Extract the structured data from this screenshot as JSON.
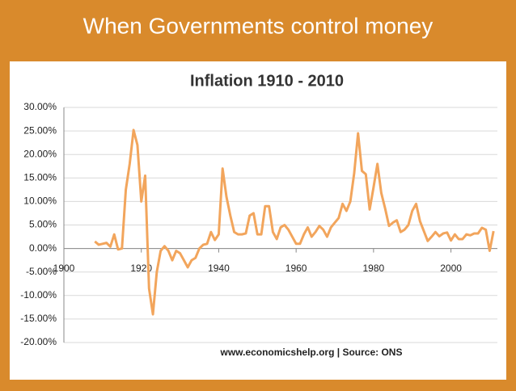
{
  "slide_title": "When Governments control money",
  "chart_data": {
    "type": "line",
    "title": "Inflation 1910  - 2010",
    "source": "www.economicshelp.org | Source: ONS",
    "x": [
      1908,
      1909,
      1910,
      1911,
      1912,
      1913,
      1914,
      1915,
      1916,
      1917,
      1918,
      1919,
      1920,
      1921,
      1922,
      1923,
      1924,
      1925,
      1926,
      1927,
      1928,
      1929,
      1930,
      1931,
      1932,
      1933,
      1934,
      1935,
      1936,
      1937,
      1938,
      1939,
      1940,
      1941,
      1942,
      1943,
      1944,
      1945,
      1946,
      1947,
      1948,
      1949,
      1950,
      1951,
      1952,
      1953,
      1954,
      1955,
      1956,
      1957,
      1958,
      1959,
      1960,
      1961,
      1962,
      1963,
      1964,
      1965,
      1966,
      1967,
      1968,
      1969,
      1970,
      1971,
      1972,
      1973,
      1974,
      1975,
      1976,
      1977,
      1978,
      1979,
      1980,
      1981,
      1982,
      1983,
      1984,
      1985,
      1986,
      1987,
      1988,
      1989,
      1990,
      1991,
      1992,
      1993,
      1994,
      1995,
      1996,
      1997,
      1998,
      1999,
      2000,
      2001,
      2002,
      2003,
      2004,
      2005,
      2006,
      2007,
      2008,
      2009,
      2010,
      2011
    ],
    "values": [
      1.5,
      0.8,
      1.0,
      1.2,
      0.4,
      3.0,
      -0.2,
      0.0,
      12.5,
      18.0,
      25.2,
      22.0,
      10.0,
      15.5,
      -8.5,
      -14.0,
      -5.0,
      -0.5,
      0.5,
      -0.5,
      -2.5,
      -0.5,
      -1.0,
      -2.5,
      -4.0,
      -2.5,
      -2.0,
      0.0,
      0.8,
      1.0,
      3.5,
      1.8,
      3.0,
      17.0,
      11.0,
      7.0,
      3.5,
      3.0,
      3.0,
      3.2,
      7.0,
      7.5,
      3.0,
      3.0,
      9.0,
      9.0,
      3.5,
      2.0,
      4.5,
      5.0,
      4.0,
      2.5,
      1.0,
      1.0,
      3.0,
      4.5,
      2.5,
      3.5,
      4.8,
      4.0,
      2.5,
      4.5,
      5.5,
      6.5,
      9.5,
      8.0,
      10.0,
      16.0,
      24.5,
      16.5,
      15.8,
      8.3,
      13.0,
      18.0,
      11.8,
      8.5,
      4.8,
      5.5,
      6.0,
      3.5,
      4.0,
      5.0,
      8.0,
      9.5,
      5.8,
      3.7,
      1.6,
      2.5,
      3.5,
      2.6,
      3.2,
      3.4,
      1.7,
      3.0,
      2.0,
      2.0,
      3.0,
      2.8,
      3.2,
      3.2,
      4.4,
      4.0,
      -0.5,
      3.7
    ],
    "color": "#f2a55c",
    "xlim": [
      1900,
      2012
    ],
    "xticks": [
      1900,
      1920,
      1940,
      1960,
      1980,
      2000
    ],
    "ylim": [
      -20,
      30
    ],
    "yticks": [
      {
        "value": -20,
        "label": "-20.00%"
      },
      {
        "value": -15,
        "label": "-15.00%"
      },
      {
        "value": -10,
        "label": "-10.00%"
      },
      {
        "value": -5,
        "label": "-5.00%"
      },
      {
        "value": 0,
        "label": "0.00%"
      },
      {
        "value": 5,
        "label": "5.00%"
      },
      {
        "value": 10,
        "label": "10.00%"
      },
      {
        "value": 15,
        "label": "15.00%"
      },
      {
        "value": 20,
        "label": "20.00%"
      },
      {
        "value": 25,
        "label": "25.00%"
      },
      {
        "value": 30,
        "label": "30.00%"
      }
    ],
    "grid": true
  }
}
